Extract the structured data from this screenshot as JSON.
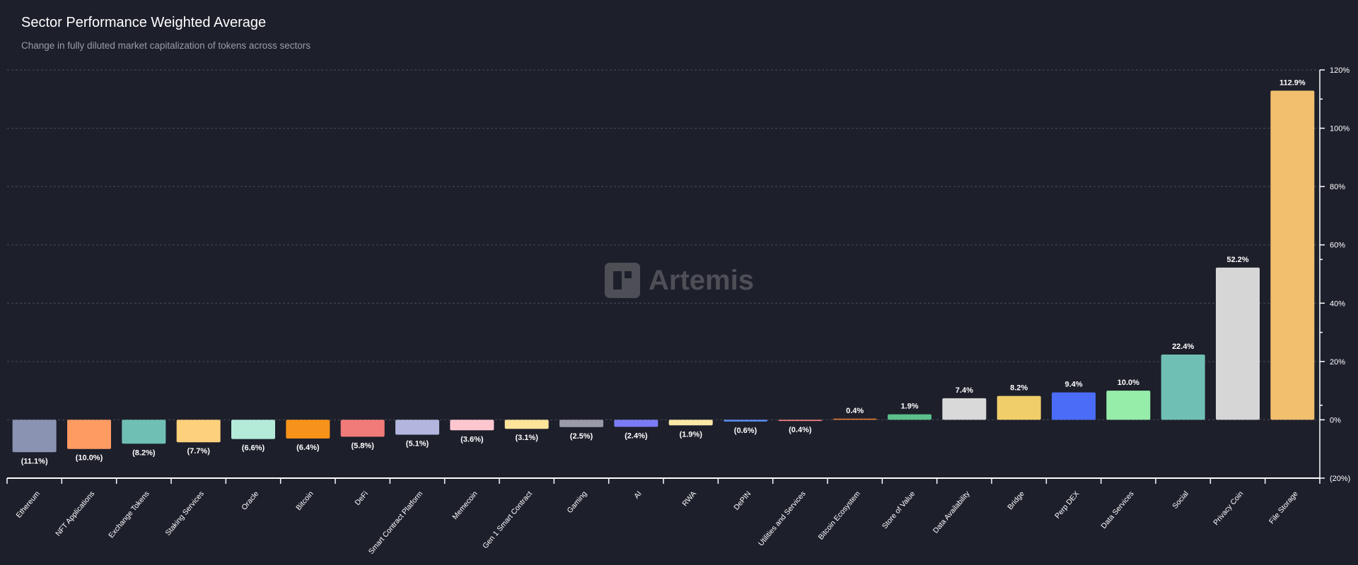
{
  "chart_data": {
    "type": "bar",
    "title": "Sector Performance Weighted Average",
    "subtitle": "Change in fully diluted market capitalization of tokens across sectors",
    "watermark": "Artemis",
    "categories": [
      "Ethereum",
      "NFT Applications",
      "Exchange Tokens",
      "Staking Services",
      "Oracle",
      "Bitcoin",
      "DeFi",
      "Smart Contract Platform",
      "Memecoin",
      "Gen 1 Smart Contract",
      "Gaming",
      "AI",
      "RWA",
      "DePIN",
      "Utilities and Services",
      "Bitcoin Ecosystem",
      "Store of Value",
      "Data Availability",
      "Bridge",
      "Perp DEX",
      "Data Services",
      "Social",
      "Privacy Coin",
      "File Storage"
    ],
    "values": [
      -11.1,
      -10.0,
      -8.2,
      -7.7,
      -6.6,
      -6.4,
      -5.8,
      -5.1,
      -3.6,
      -3.1,
      -2.5,
      -2.4,
      -1.9,
      -0.6,
      -0.4,
      0.4,
      1.9,
      7.4,
      8.2,
      9.4,
      10.0,
      22.4,
      52.2,
      112.9
    ],
    "data_labels": [
      "(11.1%)",
      "(10.0%)",
      "(8.2%)",
      "(7.7%)",
      "(6.6%)",
      "(6.4%)",
      "(5.8%)",
      "(5.1%)",
      "(3.6%)",
      "(3.1%)",
      "(2.5%)",
      "(2.4%)",
      "(1.9%)",
      "(0.6%)",
      "(0.4%)",
      "0.4%",
      "1.9%",
      "7.4%",
      "8.2%",
      "9.4%",
      "10.0%",
      "22.4%",
      "52.2%",
      "112.9%"
    ],
    "colors": [
      "#8b93b3",
      "#fd9b62",
      "#6fbfb4",
      "#fdd07c",
      "#b3ead8",
      "#f7931a",
      "#f07b78",
      "#b2b5dd",
      "#fec7d0",
      "#fde49a",
      "#9a9aa8",
      "#7b7cf5",
      "#fde9a6",
      "#5b8ef0",
      "#f08080",
      "#e07b30",
      "#5bc08a",
      "#d9d9d9",
      "#f0cf6a",
      "#4a6cf7",
      "#95eda9",
      "#6fbfb4",
      "#d6d6d6",
      "#f2bf6f"
    ],
    "y_ticks": [
      120,
      100,
      80,
      60,
      40,
      20,
      0,
      -20
    ],
    "y_tick_labels": [
      "120%",
      "100%",
      "80%",
      "60%",
      "40%",
      "20%",
      "0%",
      "(20%)"
    ],
    "ylim": [
      -20,
      120
    ],
    "y_axis_position": "right",
    "grid": true,
    "xlabel": "",
    "ylabel": ""
  }
}
